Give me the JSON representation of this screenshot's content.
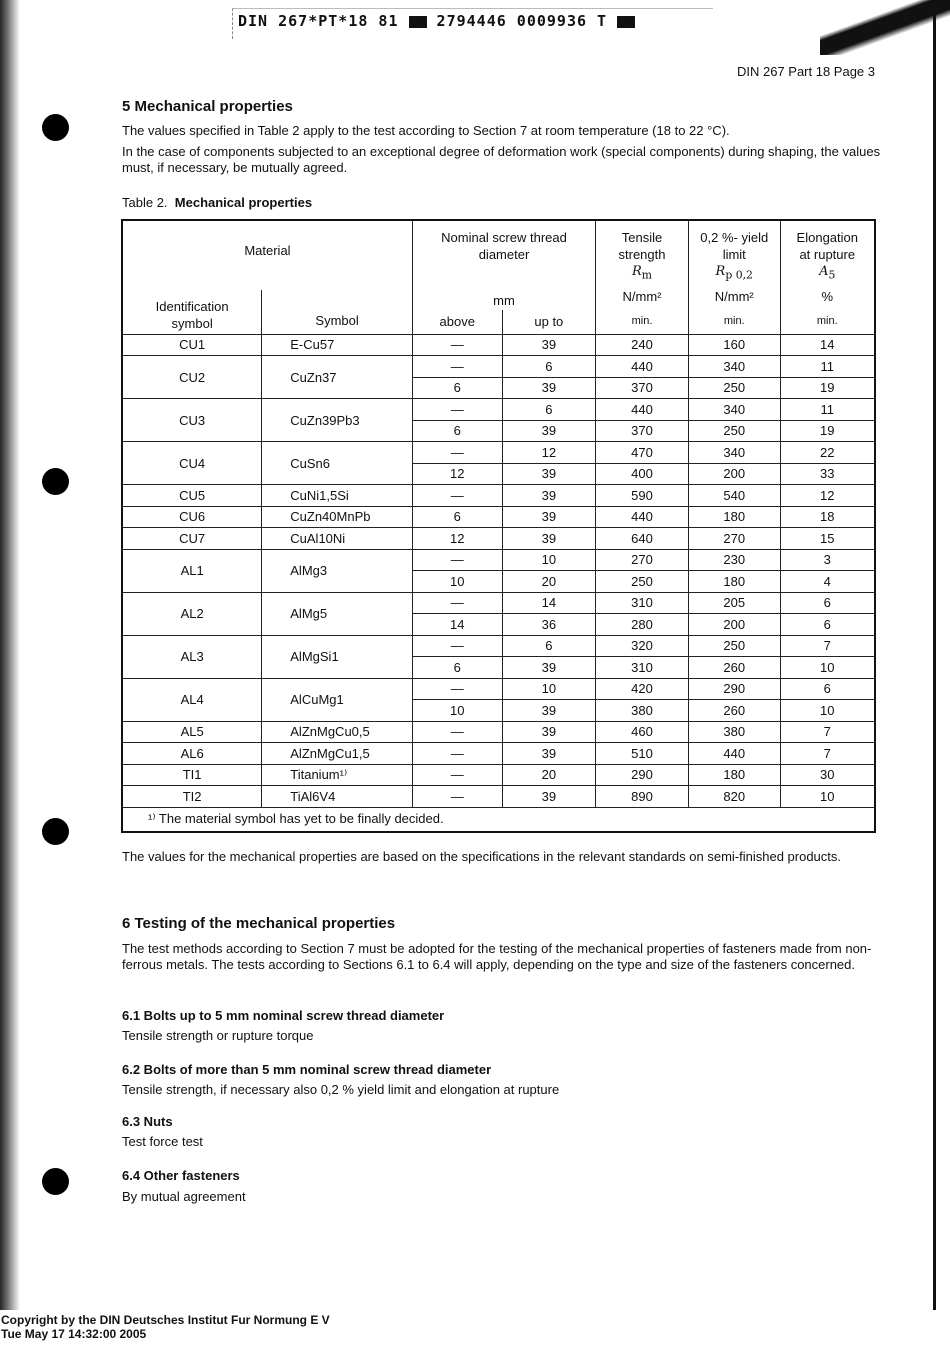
{
  "header_code": "DIN 267*PT*18 81 ",
  "header_code2": " 2794446 0009936 T ",
  "page_header": "DIN 267 Part 18   Page 3",
  "section5": {
    "title": "5   Mechanical properties",
    "para1": "The values specified in Table 2 apply to the test according to Section 7 at room temperature (18 to 22 °C).",
    "para2": "In the case of components subjected to an exceptional degree of deformation work (special components) during shaping, the values must, if necessary, be mutually agreed."
  },
  "table": {
    "caption_label": "Table 2.",
    "caption_title": "Mechanical properties",
    "headers": {
      "material": "Material",
      "identification": "Identification symbol",
      "symbol": "Symbol",
      "nominal": "Nominal screw thread diameter",
      "nominal_unit": "mm",
      "above": "above",
      "up_to": "up to",
      "tensile": "Tensile strength",
      "tensile_sym": "Rm",
      "tensile_unit": "N/mm²",
      "yield": "0,2 %- yield limit",
      "yield_sym": "Rp0,2",
      "yield_unit": "N/mm²",
      "elong": "Elongation at rupture",
      "elong_sym": "A5",
      "elong_unit": "%",
      "min": "min."
    },
    "groups": [
      {
        "id": "CU1",
        "symbol": "E-Cu57",
        "rows": [
          [
            "—",
            "39",
            "240",
            "160",
            "14"
          ]
        ]
      },
      {
        "id": "CU2",
        "symbol": "CuZn37",
        "rows": [
          [
            "—",
            "6",
            "440",
            "340",
            "11"
          ],
          [
            "6",
            "39",
            "370",
            "250",
            "19"
          ]
        ]
      },
      {
        "id": "CU3",
        "symbol": "CuZn39Pb3",
        "rows": [
          [
            "—",
            "6",
            "440",
            "340",
            "11"
          ],
          [
            "6",
            "39",
            "370",
            "250",
            "19"
          ]
        ]
      },
      {
        "id": "CU4",
        "symbol": "CuSn6",
        "rows": [
          [
            "—",
            "12",
            "470",
            "340",
            "22"
          ],
          [
            "12",
            "39",
            "400",
            "200",
            "33"
          ]
        ]
      },
      {
        "id": "CU5",
        "symbol": "CuNi1,5Si",
        "rows": [
          [
            "—",
            "39",
            "590",
            "540",
            "12"
          ]
        ]
      },
      {
        "id": "CU6",
        "symbol": "CuZn40MnPb",
        "rows": [
          [
            "6",
            "39",
            "440",
            "180",
            "18"
          ]
        ]
      },
      {
        "id": "CU7",
        "symbol": "CuAl10Ni",
        "rows": [
          [
            "12",
            "39",
            "640",
            "270",
            "15"
          ]
        ]
      },
      {
        "id": "AL1",
        "symbol": "AlMg3",
        "rows": [
          [
            "—",
            "10",
            "270",
            "230",
            "3"
          ],
          [
            "10",
            "20",
            "250",
            "180",
            "4"
          ]
        ]
      },
      {
        "id": "AL2",
        "symbol": "AlMg5",
        "rows": [
          [
            "—",
            "14",
            "310",
            "205",
            "6"
          ],
          [
            "14",
            "36",
            "280",
            "200",
            "6"
          ]
        ]
      },
      {
        "id": "AL3",
        "symbol": "AlMgSi1",
        "rows": [
          [
            "—",
            "6",
            "320",
            "250",
            "7"
          ],
          [
            "6",
            "39",
            "310",
            "260",
            "10"
          ]
        ]
      },
      {
        "id": "AL4",
        "symbol": "AlCuMg1",
        "rows": [
          [
            "—",
            "10",
            "420",
            "290",
            "6"
          ],
          [
            "10",
            "39",
            "380",
            "260",
            "10"
          ]
        ]
      },
      {
        "id": "AL5",
        "symbol": "AlZnMgCu0,5",
        "rows": [
          [
            "—",
            "39",
            "460",
            "380",
            "7"
          ]
        ]
      },
      {
        "id": "AL6",
        "symbol": "AlZnMgCu1,5",
        "rows": [
          [
            "—",
            "39",
            "510",
            "440",
            "7"
          ]
        ]
      },
      {
        "id": "TI1",
        "symbol": "Titanium¹⁾",
        "rows": [
          [
            "—",
            "20",
            "290",
            "180",
            "30"
          ]
        ]
      },
      {
        "id": "TI2",
        "symbol": "TiAl6V4",
        "rows": [
          [
            "—",
            "39",
            "890",
            "820",
            "10"
          ]
        ]
      }
    ],
    "footnote": "¹⁾ The material symbol has yet to be finally decided."
  },
  "after_table": "The values for the mechanical properties are based on the specifications in the relevant standards on semi-finished products.",
  "section6": {
    "title": "6   Testing of the mechanical properties",
    "para": "The test methods according to Section 7 must be adopted for the testing of the mechanical properties of fasteners made from non-ferrous metals. The tests according to Sections 6.1 to 6.4 will apply, depending on the type and size of the fasteners concerned.",
    "subs": [
      {
        "title": "6.1   Bolts up to 5 mm nominal screw thread diameter",
        "text": "Tensile strength or rupture torque"
      },
      {
        "title": "6.2   Bolts of more than 5 mm nominal screw thread diameter",
        "text": "Tensile strength, if necessary also 0,2 % yield limit and elongation at rupture"
      },
      {
        "title": "6.3   Nuts",
        "text": "Test force test"
      },
      {
        "title": "6.4   Other fasteners",
        "text": "By mutual agreement"
      }
    ]
  },
  "copyright": [
    "Copyright by the DIN Deutsches Institut Fur Normung E V",
    "Tue May 17 14:32:00 2005"
  ]
}
